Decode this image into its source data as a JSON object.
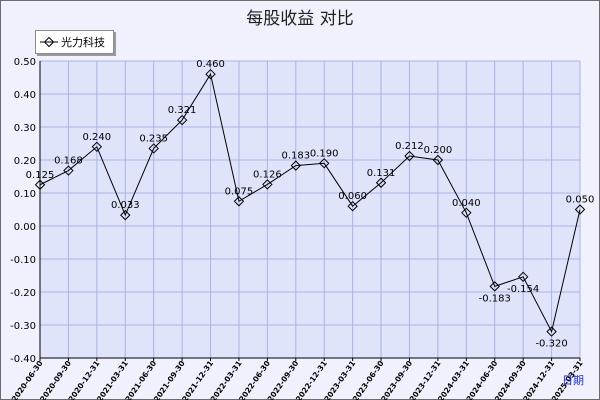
{
  "chart_data": {
    "type": "line",
    "title": "每股收益 对比",
    "xlabel": "日期",
    "ylabel": "",
    "ylim": [
      -0.4,
      0.5
    ],
    "yticks": [
      "0.50",
      "0.40",
      "0.30",
      "0.20",
      "0.10",
      "0.00",
      "-0.10",
      "-0.20",
      "-0.30",
      "-0.40"
    ],
    "grid": true,
    "legend_position": "top-left",
    "categories": [
      "2020-06-30",
      "2020-09-30",
      "2020-12-31",
      "2021-03-31",
      "2021-06-30",
      "2021-09-30",
      "2021-12-31",
      "2022-03-31",
      "2022-06-30",
      "2022-09-30",
      "2022-12-31",
      "2023-03-31",
      "2023-06-30",
      "2023-09-30",
      "2023-12-31",
      "2024-03-31",
      "2024-06-30",
      "2024-09-30",
      "2024-12-31",
      "2025-03-31"
    ],
    "series": [
      {
        "name": "光力科技",
        "values": [
          0.125,
          0.168,
          0.24,
          0.033,
          0.235,
          0.321,
          0.46,
          0.075,
          0.126,
          0.183,
          0.19,
          0.06,
          0.131,
          0.212,
          0.2,
          0.04,
          -0.183,
          -0.154,
          -0.32,
          0.05
        ],
        "labels": [
          "0.125",
          "0.168",
          "0.240",
          "0.033",
          "0.235",
          "0.321",
          "0.460",
          "0.075",
          "0.126",
          "0.183",
          "0.190",
          "0.060",
          "0.131",
          "0.212",
          "0.200",
          "0.040",
          "-0.183",
          "-0.154",
          "-0.320",
          "0.050"
        ]
      }
    ]
  },
  "colors": {
    "line": "#000000",
    "plot_background": "#dfe4fb",
    "grid": "#a8b4e4",
    "outer_background": "#f1f1fd"
  }
}
